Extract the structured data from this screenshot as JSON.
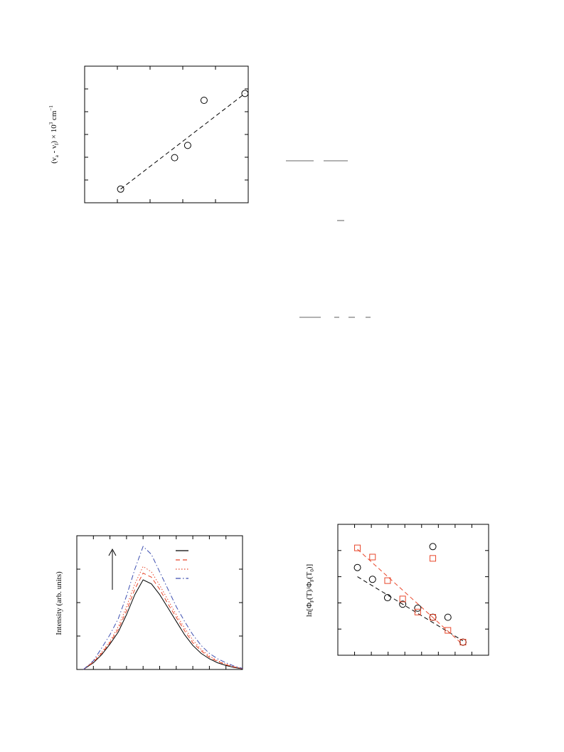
{
  "chart_data": [
    {
      "type": "scatter",
      "title": "",
      "ylabel": "(ν_a - ν_f) × 10^3 cm^-1",
      "ylabel_parts": {
        "open": "(ν",
        "sub_a": "a",
        "minus": " - ν",
        "sub_f": "f",
        "times": ") × 10",
        "sup3": "3",
        "unit": " cm",
        "sup_inv": "−1"
      },
      "xlabel": "",
      "xlim": [
        0,
        10
      ],
      "ylim": [
        0,
        10
      ],
      "grid": false,
      "series": [
        {
          "x": [
            2.2,
            5.5,
            6.3,
            7.3,
            9.8
          ],
          "y": [
            1.0,
            3.3,
            4.2,
            7.5,
            8.0
          ],
          "marker": "circle",
          "color": "#000000"
        }
      ],
      "fit_line": {
        "x": [
          2.2,
          9.8
        ],
        "y": [
          1.0,
          8.0
        ],
        "style": "dashed",
        "color": "#000000"
      }
    },
    {
      "type": "line",
      "title": "",
      "ylabel": "Intensity (arb. units)",
      "xlabel": "",
      "xlim": [
        0,
        10
      ],
      "ylim": [
        0,
        10
      ],
      "grid": false,
      "legend_position": "top-right",
      "annotation": "arrow-up",
      "x": [
        0.4,
        1.0,
        1.5,
        2.0,
        2.5,
        3.0,
        3.5,
        4.0,
        4.5,
        5.0,
        5.5,
        6.0,
        6.5,
        7.0,
        7.5,
        8.0,
        8.5,
        9.0,
        9.5,
        10.0
      ],
      "series": [
        {
          "style": "solid",
          "color": "#000000",
          "values": [
            0.0,
            0.5,
            1.1,
            1.9,
            2.8,
            4.1,
            5.6,
            6.7,
            6.4,
            5.6,
            4.6,
            3.6,
            2.6,
            1.8,
            1.2,
            0.8,
            0.5,
            0.3,
            0.15,
            0.05
          ]
        },
        {
          "style": "dashed",
          "color": "#e8462a",
          "values": [
            0.0,
            0.55,
            1.2,
            2.0,
            3.0,
            4.4,
            6.0,
            7.2,
            6.9,
            6.0,
            4.9,
            3.9,
            2.9,
            2.0,
            1.4,
            0.9,
            0.6,
            0.35,
            0.18,
            0.06
          ]
        },
        {
          "style": "dotted",
          "color": "#e8462a",
          "values": [
            0.0,
            0.6,
            1.3,
            2.1,
            3.2,
            4.7,
            6.4,
            7.7,
            7.3,
            6.3,
            5.2,
            4.1,
            3.1,
            2.2,
            1.5,
            1.0,
            0.65,
            0.4,
            0.2,
            0.07
          ]
        },
        {
          "style": "dash-dot",
          "color": "#3d4fb0",
          "values": [
            0.0,
            0.65,
            1.6,
            2.6,
            3.8,
            5.5,
            7.5,
            9.2,
            8.6,
            7.3,
            6.0,
            4.7,
            3.6,
            2.6,
            1.8,
            1.2,
            0.8,
            0.5,
            0.25,
            0.08
          ]
        }
      ]
    },
    {
      "type": "scatter",
      "title": "",
      "ylabel": "ln[Φ_F(T)/Φ_F(T_0)]",
      "ylabel_parts": {
        "open": "ln[Φ",
        "sub1": "F",
        "mid": "(T)/Φ",
        "sub2": "F",
        "mid2": "(T",
        "sub3": "0",
        "close": ")]"
      },
      "xlabel": "",
      "xlim": [
        0,
        10
      ],
      "ylim": [
        0,
        10
      ],
      "grid": false,
      "series": [
        {
          "marker": "circle",
          "color": "#000000",
          "x": [
            1.3,
            2.3,
            3.3,
            4.3,
            5.3,
            6.3,
            7.3,
            8.3
          ],
          "y": [
            6.7,
            5.8,
            4.4,
            3.9,
            3.6,
            2.9,
            2.9,
            1.0
          ]
        },
        {
          "marker": "square",
          "color": "#e8462a",
          "x": [
            1.3,
            2.3,
            3.3,
            4.3,
            5.3,
            6.3,
            7.3,
            8.3
          ],
          "y": [
            8.2,
            7.5,
            5.7,
            4.3,
            3.3,
            2.9,
            1.9,
            1.0
          ]
        },
        {
          "marker": "circle",
          "color": "#000000",
          "x": [
            6.3
          ],
          "y": [
            8.3
          ]
        },
        {
          "marker": "square",
          "color": "#e8462a",
          "x": [
            6.3
          ],
          "y": [
            7.4
          ]
        }
      ],
      "fit_lines": [
        {
          "x": [
            1.3,
            8.3
          ],
          "y": [
            6.0,
            1.1
          ],
          "style": "dashed",
          "color": "#000000"
        },
        {
          "x": [
            1.3,
            8.3
          ],
          "y": [
            8.1,
            0.8
          ],
          "style": "dashed",
          "color": "#e8462a"
        }
      ]
    }
  ],
  "stray_marks": [
    "text-fragment-1",
    "text-fragment-2",
    "text-fragment-3",
    "text-fragment-4",
    "text-fragment-5",
    "text-fragment-6",
    "text-fragment-7"
  ]
}
